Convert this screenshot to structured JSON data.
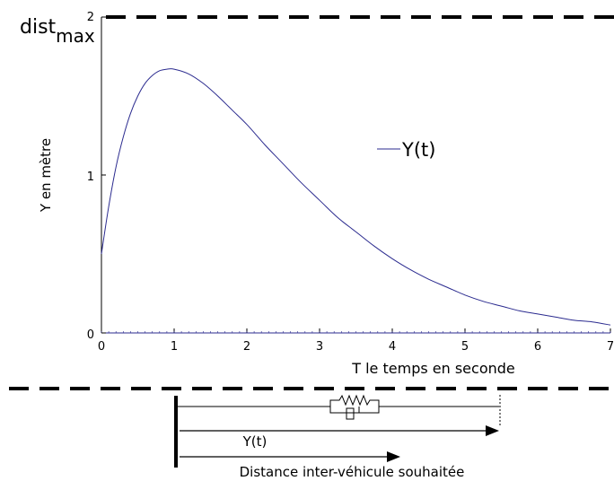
{
  "chart_data": {
    "type": "line",
    "title": "",
    "xlabel": "T le temps en seconde",
    "ylabel": "Y en mètre",
    "xlim": [
      0,
      7
    ],
    "ylim": [
      0,
      2
    ],
    "x_ticks": [
      0,
      1,
      2,
      3,
      4,
      5,
      6,
      7
    ],
    "y_ticks": [
      0,
      1,
      2
    ],
    "grid": false,
    "legend_position": "right",
    "series": [
      {
        "name": "Y(t)",
        "color": "#2b2b8f",
        "x": [
          0,
          0.1,
          0.2,
          0.3,
          0.4,
          0.5,
          0.6,
          0.7,
          0.8,
          0.9,
          1.0,
          1.2,
          1.4,
          1.6,
          1.8,
          2.0,
          2.25,
          2.5,
          2.75,
          3.0,
          3.25,
          3.5,
          3.75,
          4.0,
          4.25,
          4.5,
          4.75,
          5.0,
          5.25,
          5.5,
          5.75,
          6.0,
          6.25,
          6.5,
          6.75,
          7.0
        ],
        "values": [
          0.5,
          0.8,
          1.05,
          1.24,
          1.39,
          1.5,
          1.58,
          1.63,
          1.66,
          1.67,
          1.67,
          1.64,
          1.58,
          1.5,
          1.41,
          1.32,
          1.19,
          1.07,
          0.95,
          0.84,
          0.73,
          0.64,
          0.55,
          0.47,
          0.4,
          0.34,
          0.29,
          0.24,
          0.2,
          0.17,
          0.14,
          0.12,
          0.1,
          0.08,
          0.07,
          0.05
        ]
      }
    ],
    "annotations": {
      "dist_base": "dist",
      "dist_sub": "max"
    }
  },
  "diagram": {
    "y_label": "Y(t)",
    "distance_label": "Distance inter-véhicule souhaitée"
  }
}
